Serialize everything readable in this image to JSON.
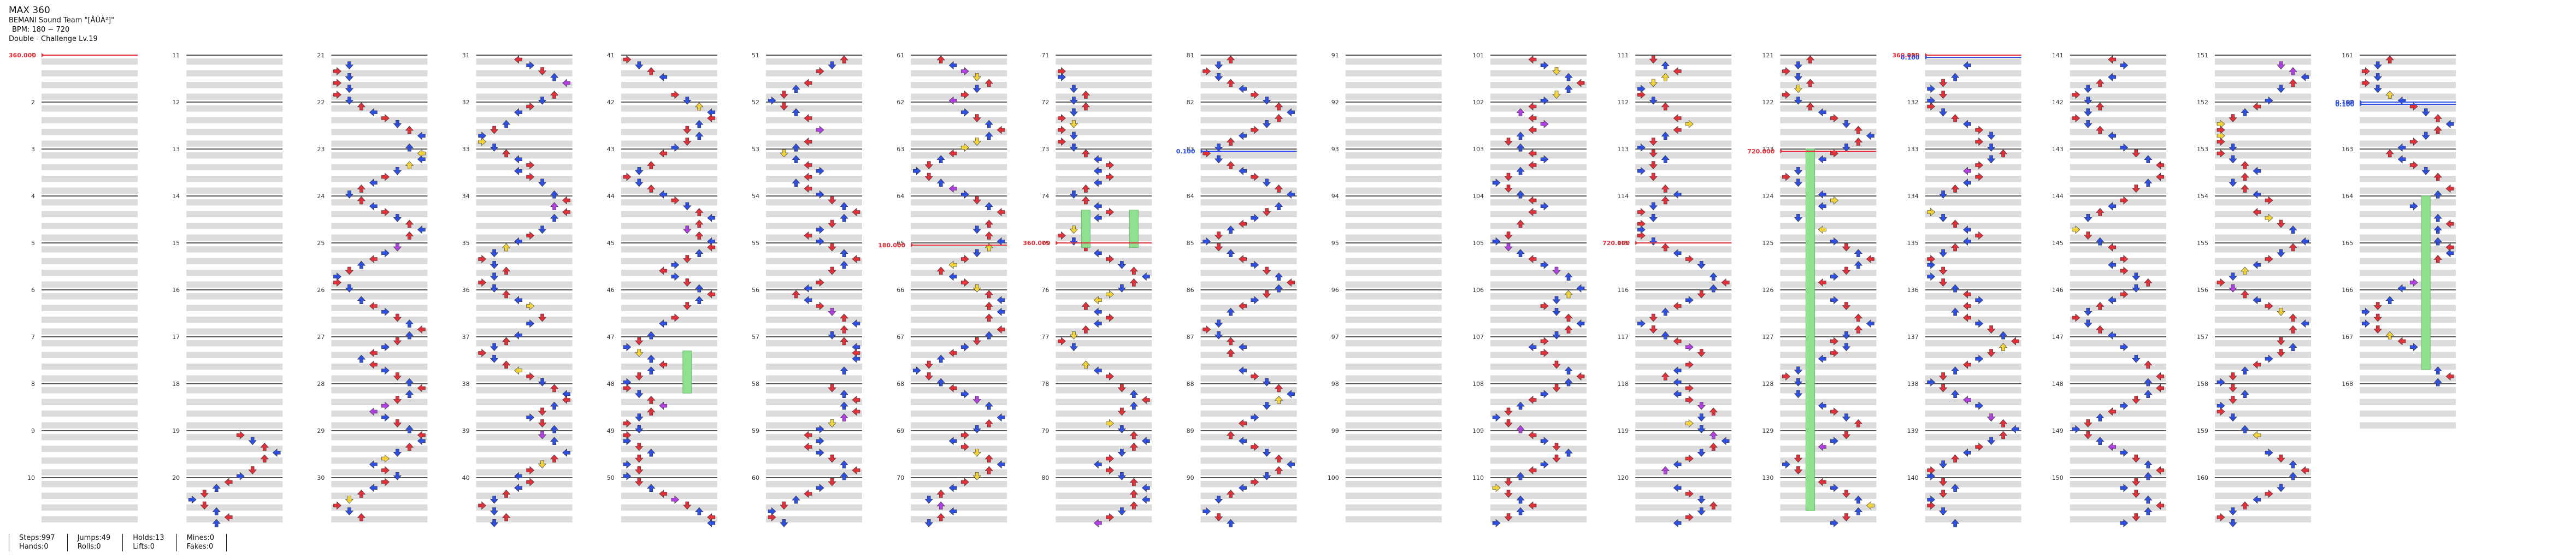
{
  "song": {
    "title": "MAX 360",
    "artist": "BEMANI Sound Team \"[ÅÛÀ²]\"",
    "bpm_label": "BPM: 180 ~ 720",
    "difficulty_label": "Double - Challenge Lv.19"
  },
  "bpm_changes": [
    {
      "measure": 1,
      "label": "360.000",
      "color": "#e0303a"
    },
    {
      "measure": 65,
      "label": "180.000",
      "color": "#e0303a"
    },
    {
      "measure": 75,
      "label": "360.000",
      "color": "#e0303a"
    },
    {
      "measure": 83,
      "label": "0.100",
      "color": "#2e4fe0"
    },
    {
      "measure": 115,
      "label": "720.000",
      "color": "#e0303a"
    },
    {
      "measure": 123,
      "label": "720.000",
      "color": "#e0303a"
    },
    {
      "measure": 131,
      "label": "360.000",
      "color": "#e0303a"
    },
    {
      "measure": 131,
      "label": "0.100",
      "color": "#2e4fe0"
    },
    {
      "measure": 162,
      "label": "0.100",
      "color": "#2e4fe0"
    },
    {
      "measure": 162,
      "label": "0.100",
      "color": "#2e4fe0"
    }
  ],
  "stats": [
    {
      "a": "Steps:997",
      "b": "Hands:0"
    },
    {
      "a": "Jumps:49",
      "b": "Rolls:0"
    },
    {
      "a": "Holds:13",
      "b": "Lifts:0"
    },
    {
      "a": "Mines:0",
      "b": "Fakes:0"
    }
  ],
  "colors": {
    "quarter": "#e0303a",
    "eighth": "#2e4fe0",
    "sixteenth": "#f2d43a",
    "twelfth": "#b040e0",
    "hold": "#8fe08f",
    "stripe": "#dcdcdc",
    "measure_line": "#222222"
  },
  "chart_data": {
    "type": "step-chart",
    "mode": "Double",
    "panels_per_side": 4,
    "measures_total": 168,
    "measures_per_column": 10,
    "columns": 17,
    "first_measure": 1,
    "last_measure": 168
  }
}
